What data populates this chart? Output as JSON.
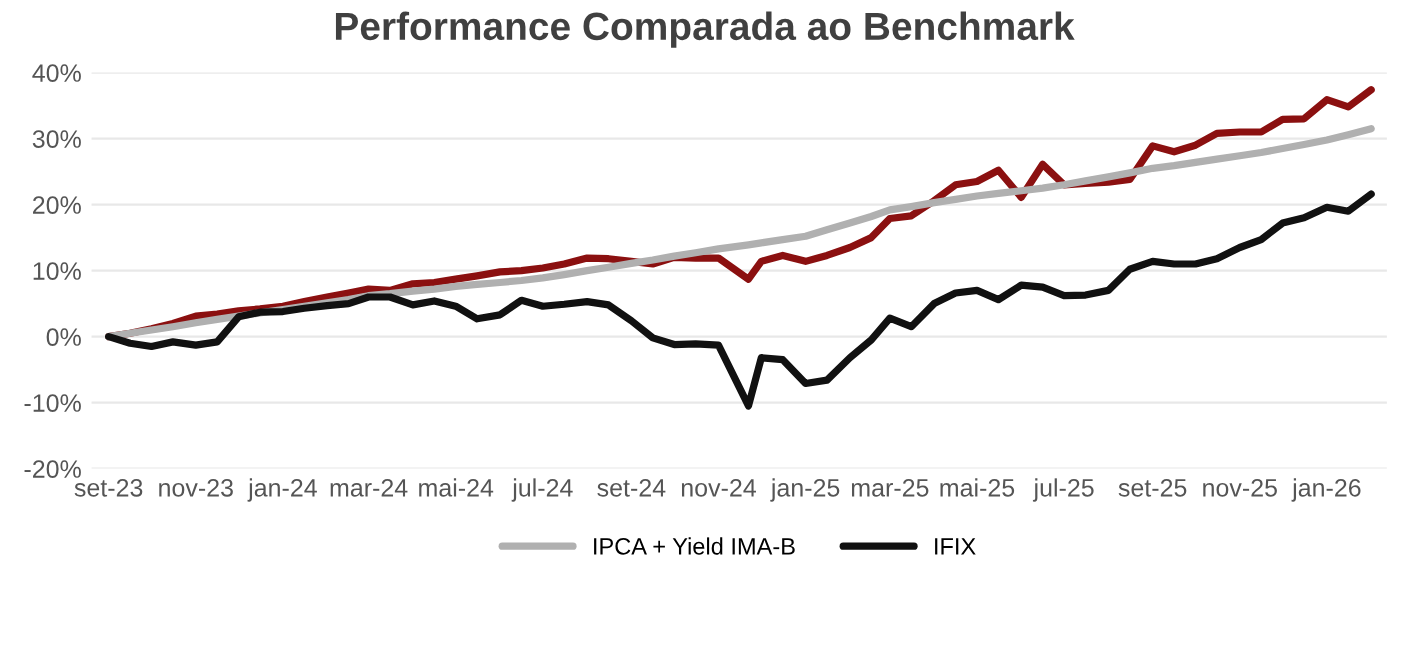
{
  "chart_data": {
    "type": "line",
    "title": "Performance Comparada ao Benchmark",
    "x": [
      "2023-09-01",
      "2023-09-16",
      "2023-10-01",
      "2023-10-16",
      "2023-11-01",
      "2023-11-16",
      "2023-12-01",
      "2023-12-16",
      "2024-01-01",
      "2024-01-16",
      "2024-02-01",
      "2024-02-16",
      "2024-03-01",
      "2024-03-16",
      "2024-04-01",
      "2024-04-16",
      "2024-05-01",
      "2024-05-16",
      "2024-06-01",
      "2024-06-16",
      "2024-07-01",
      "2024-07-16",
      "2024-08-01",
      "2024-08-16",
      "2024-09-01",
      "2024-09-16",
      "2024-10-01",
      "2024-10-16",
      "2024-11-01",
      "2024-11-22",
      "2024-12-01",
      "2024-12-16",
      "2025-01-01",
      "2025-01-16",
      "2025-02-01",
      "2025-02-16",
      "2025-03-01",
      "2025-03-16",
      "2025-04-01",
      "2025-04-16",
      "2025-05-01",
      "2025-05-16",
      "2025-06-01",
      "2025-06-16",
      "2025-07-01",
      "2025-07-16",
      "2025-08-01",
      "2025-08-16",
      "2025-09-01",
      "2025-09-16",
      "2025-10-01",
      "2025-10-16",
      "2025-11-01",
      "2025-11-16",
      "2025-12-01",
      "2025-12-16",
      "2026-01-01",
      "2026-01-16",
      "2026-02-01"
    ],
    "series": [
      {
        "color": "#8b1010",
        "values": [
          0,
          0.5,
          1.2,
          2.0,
          3.1,
          3.4,
          3.9,
          4.2,
          4.6,
          5.3,
          6.0,
          6.6,
          7.2,
          7.0,
          8.0,
          8.2,
          8.7,
          9.2,
          9.8,
          10.0,
          10.4,
          11.0,
          11.9,
          11.8,
          11.4,
          11.0,
          12.0,
          11.9,
          11.9,
          8.7,
          11.4,
          12.3,
          11.4,
          12.3,
          13.5,
          15.0,
          17.9,
          18.3,
          20.6,
          23.0,
          23.5,
          25.2,
          21.1,
          26.1,
          23.0,
          23.2,
          23.4,
          23.8,
          28.9,
          28.0,
          29.0,
          30.8,
          31.0,
          31.0,
          32.9,
          33.0,
          35.9,
          34.8,
          37.4
        ]
      },
      {
        "name": "IPCA + Yield IMA-B",
        "color": "#b0b0b0",
        "values": [
          0,
          0.5,
          1.0,
          1.5,
          2.1,
          2.6,
          3.1,
          3.6,
          4.1,
          4.6,
          5.1,
          5.6,
          6.2,
          6.5,
          6.9,
          7.2,
          7.6,
          7.9,
          8.2,
          8.5,
          8.9,
          9.4,
          10.0,
          10.5,
          11.1,
          11.6,
          12.2,
          12.7,
          13.3,
          13.9,
          14.2,
          14.7,
          15.2,
          16.2,
          17.2,
          18.2,
          19.2,
          19.7,
          20.3,
          20.8,
          21.3,
          21.7,
          22.1,
          22.5,
          23.0,
          23.6,
          24.2,
          24.8,
          25.5,
          25.9,
          26.4,
          26.9,
          27.4,
          27.9,
          28.5,
          29.1,
          29.8,
          30.6,
          31.5
        ]
      },
      {
        "name": "IFIX",
        "color": "#111111",
        "values": [
          0,
          -1.0,
          -1.5,
          -0.8,
          -1.3,
          -0.8,
          3.0,
          3.7,
          3.8,
          4.3,
          4.7,
          5.0,
          6.0,
          6.0,
          4.8,
          5.4,
          4.6,
          2.7,
          3.3,
          5.5,
          4.6,
          4.9,
          5.3,
          4.8,
          2.4,
          -0.2,
          -1.2,
          -1.1,
          -1.3,
          -10.5,
          -3.2,
          -3.5,
          -7.1,
          -6.6,
          -3.2,
          -0.5,
          2.8,
          1.5,
          5.0,
          6.6,
          7.0,
          5.6,
          7.8,
          7.5,
          6.2,
          6.3,
          7.0,
          10.2,
          11.4,
          11.0,
          11.0,
          11.8,
          13.5,
          14.7,
          17.2,
          18.0,
          19.6,
          19.0,
          21.6
        ]
      }
    ],
    "xlim": [
      "2023-08-20",
      "2026-02-12"
    ],
    "xticks": [
      {
        "value": "2023-09-01",
        "label": "set-23"
      },
      {
        "value": "2023-11-01",
        "label": "nov-23"
      },
      {
        "value": "2024-01-01",
        "label": "jan-24"
      },
      {
        "value": "2024-03-01",
        "label": "mar-24"
      },
      {
        "value": "2024-05-01",
        "label": "mai-24"
      },
      {
        "value": "2024-07-01",
        "label": "jul-24"
      },
      {
        "value": "2024-09-01",
        "label": "set-24"
      },
      {
        "value": "2024-11-01",
        "label": "nov-24"
      },
      {
        "value": "2025-01-01",
        "label": "jan-25"
      },
      {
        "value": "2025-03-01",
        "label": "mar-25"
      },
      {
        "value": "2025-05-01",
        "label": "mai-25"
      },
      {
        "value": "2025-07-01",
        "label": "jul-25"
      },
      {
        "value": "2025-09-01",
        "label": "set-25"
      },
      {
        "value": "2025-11-01",
        "label": "nov-25"
      },
      {
        "value": "2026-01-01",
        "label": "jan-26"
      }
    ],
    "ylim": [
      -20,
      40
    ],
    "yticks": [
      {
        "value": -20,
        "label": "-20%"
      },
      {
        "value": -10,
        "label": "-10%"
      },
      {
        "value": 0,
        "label": "0%"
      },
      {
        "value": 10,
        "label": "10%"
      },
      {
        "value": 20,
        "label": "20%"
      },
      {
        "value": 30,
        "label": "30%"
      },
      {
        "value": 40,
        "label": "40%"
      }
    ],
    "grid": "y",
    "legend": "bottom",
    "marker": "none",
    "line_style": "solid"
  }
}
